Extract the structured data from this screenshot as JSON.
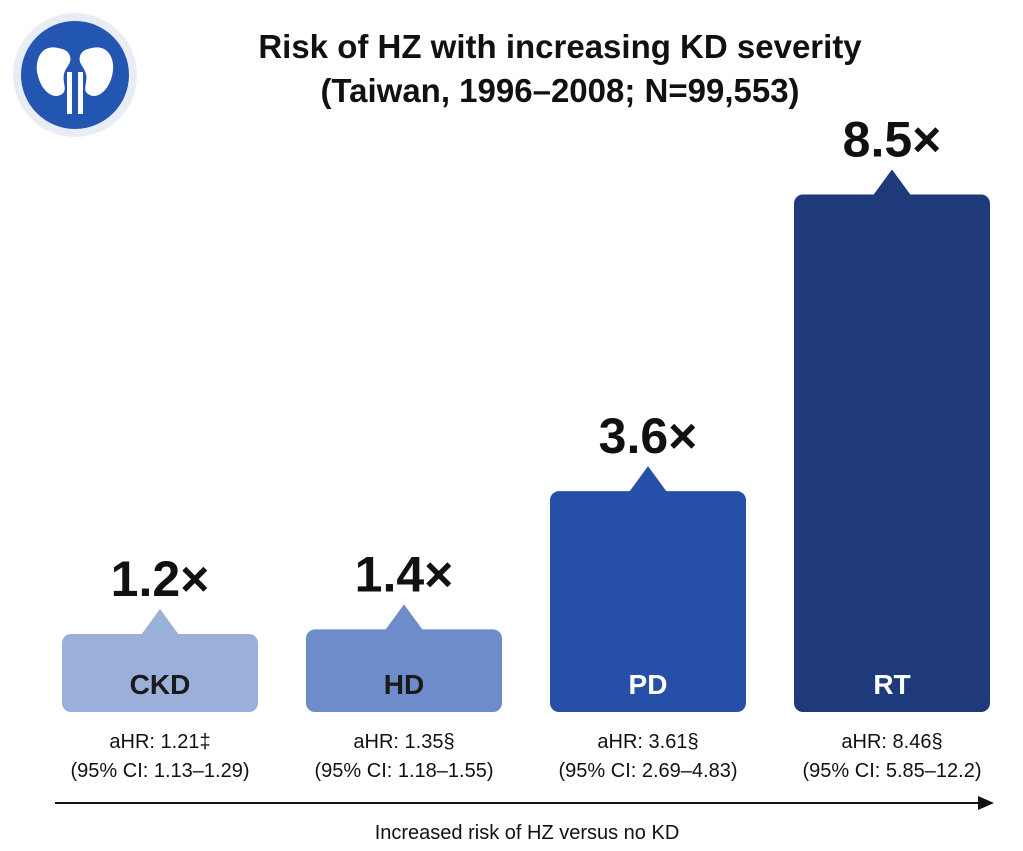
{
  "header": {
    "title_line1": "Risk of HZ with increasing KD severity",
    "title_line2": "(Taiwan, 1996–2008; N=99,553)"
  },
  "logo": {
    "icon": "kidney-icon",
    "color": "#2356b0"
  },
  "chart_data": {
    "type": "bar",
    "title": "Risk of HZ with increasing KD severity (Taiwan, 1996–2008; N=99,553)",
    "categories": [
      "CKD",
      "HD",
      "PD",
      "RT"
    ],
    "values": [
      1.21,
      1.35,
      3.61,
      8.46
    ],
    "multiplier_labels": [
      "1.2×",
      "1.4×",
      "3.6×",
      "8.5×"
    ],
    "ahr_labels": [
      "aHR: 1.21‡",
      "aHR: 1.35§",
      "aHR: 3.61§",
      "aHR: 8.46§"
    ],
    "ci_labels": [
      "(95% CI: 1.13–1.29)",
      "(95% CI: 1.18–1.55)",
      "(95% CI: 2.69–4.83)",
      "(95% CI: 5.85–12.2)"
    ],
    "colors": [
      "#9aafd9",
      "#6e8cc9",
      "#2650a8",
      "#1f3a7a"
    ],
    "label_colors": [
      "#1a1a1a",
      "#1a1a1a",
      "#ffffff",
      "#ffffff"
    ],
    "xlabel": "Increased risk of HZ versus no KD",
    "ylabel": "",
    "ylim": [
      0,
      8.5
    ],
    "grid": false,
    "legend": "none"
  }
}
